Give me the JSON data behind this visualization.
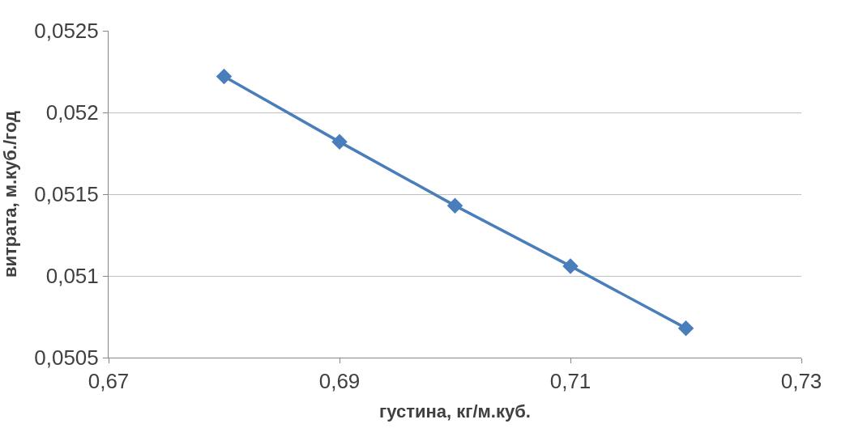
{
  "chart_data": {
    "type": "line",
    "xlabel": "густина, кг/м.куб.",
    "ylabel": "витрата, м.куб./год",
    "x": [
      0.68,
      0.69,
      0.7,
      0.71,
      0.72
    ],
    "series": [
      {
        "color": "#4a7ebb",
        "values": [
          0.05222,
          0.05182,
          0.05143,
          0.05106,
          0.05068
        ]
      }
    ],
    "xlim": [
      0.67,
      0.73
    ],
    "xticks": [
      {
        "value": 0.67,
        "label": "0,67"
      },
      {
        "value": 0.69,
        "label": "0,69"
      },
      {
        "value": 0.71,
        "label": "0,71"
      },
      {
        "value": 0.73,
        "label": "0,73"
      }
    ],
    "ylim": [
      0.0505,
      0.0525
    ],
    "yticks": [
      {
        "value": 0.0505,
        "label": "0,0505"
      },
      {
        "value": 0.051,
        "label": "0,051"
      },
      {
        "value": 0.0515,
        "label": "0,0515"
      },
      {
        "value": 0.052,
        "label": "0,052"
      },
      {
        "value": 0.0525,
        "label": "0,0525"
      }
    ],
    "grid": "y",
    "legend": false,
    "marker": "diamond",
    "line_style": "solid"
  }
}
